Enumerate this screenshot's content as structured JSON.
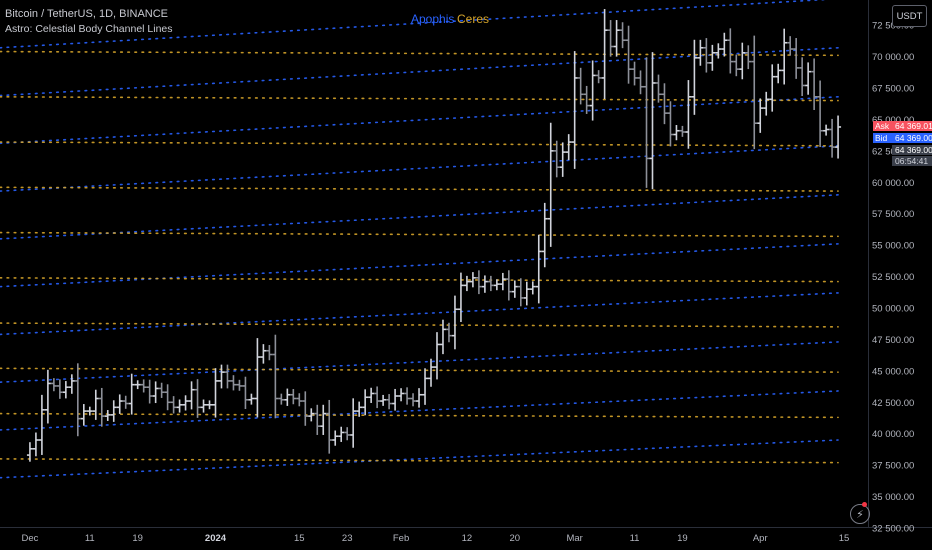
{
  "header": {
    "symbol_line": "Bitcoin / TetherUS, 1D, BINANCE",
    "indicator_line": "Astro: Celestial Body Channel Lines"
  },
  "legend": [
    {
      "name": "Apophis",
      "color": "#2962ff"
    },
    {
      "name": "Ceres",
      "color": "#d6a52b"
    }
  ],
  "currency_button": "USDT",
  "price_tags": {
    "ask_label": "Ask",
    "ask_value": "64 369.01",
    "bid_label": "Bid",
    "bid_value": "64 369.00",
    "last_value": "64 369.00",
    "countdown": "06:54:41"
  },
  "colors": {
    "background": "#000000",
    "bars": "#c7c9ce",
    "apophis": "#2962ff",
    "ceres": "#d6a52b",
    "ask": "#f7525f",
    "bid": "#2962ff"
  },
  "icons": [
    "lightning-icon"
  ],
  "chart_data": {
    "type": "ohlc",
    "title": "Bitcoin / TetherUS, 1D, BINANCE",
    "y_axis": {
      "range": [
        32500,
        74500
      ],
      "ticks": [
        "32 500.00",
        "35 000.00",
        "37 500.00",
        "40 000.00",
        "42 500.00",
        "45 000.00",
        "47 500.00",
        "50 000.00",
        "52 500.00",
        "55 000.00",
        "57 500.00",
        "60 000.00",
        "62 500.00",
        "65 000.00",
        "67 500.00",
        "70 000.00",
        "72 500.00"
      ]
    },
    "x_axis": {
      "range_days": [
        -5,
        140
      ],
      "labels": [
        {
          "day": 0,
          "text": "Dec"
        },
        {
          "day": 10,
          "text": "11"
        },
        {
          "day": 18,
          "text": "19"
        },
        {
          "day": 31,
          "text": "2024"
        },
        {
          "day": 45,
          "text": "15"
        },
        {
          "day": 53,
          "text": "23"
        },
        {
          "day": 62,
          "text": "Feb"
        },
        {
          "day": 73,
          "text": "12"
        },
        {
          "day": 81,
          "text": "20"
        },
        {
          "day": 91,
          "text": "Mar"
        },
        {
          "day": 101,
          "text": "11"
        },
        {
          "day": 109,
          "text": "19"
        },
        {
          "day": 122,
          "text": "Apr"
        },
        {
          "day": 136,
          "text": "15"
        }
      ]
    },
    "series": [
      {
        "name": "BTCUSDT",
        "type": "ohlc",
        "start_day": 0,
        "note": "daily bars",
        "close": [
          38800,
          39500,
          41900,
          44000,
          43800,
          43300,
          43700,
          44200,
          41200,
          41800,
          41800,
          42800,
          41400,
          41500,
          42100,
          42600,
          42400,
          43900,
          43900,
          43700,
          43000,
          43600,
          43300,
          42500,
          42100,
          42300,
          42600,
          43500,
          42100,
          42300,
          42300,
          44200,
          44900,
          44200,
          43900,
          43800,
          42700,
          42800,
          46100,
          46600,
          46300,
          42800,
          42700,
          43100,
          42800,
          42600,
          41400,
          41600,
          40600,
          41600,
          39500,
          39800,
          40100,
          39900,
          41800,
          42100,
          42900,
          43200,
          42600,
          42700,
          42400,
          43000,
          43200,
          42800,
          42600,
          43100,
          44400,
          45300,
          47100,
          48300,
          47800,
          49900,
          51800,
          52100,
          52400,
          51700,
          52100,
          51800,
          51900,
          52300,
          51300,
          51700,
          50800,
          51500,
          51700,
          54500,
          57100,
          62500,
          61200,
          62400,
          63200,
          68300,
          67000,
          66100,
          68500,
          68300,
          72100,
          70800,
          72100,
          71300,
          69000,
          68300,
          67600,
          61900,
          67900,
          67000,
          65500,
          63800,
          64100,
          64000,
          66800,
          69900,
          70700,
          69500,
          70300,
          70600,
          71300,
          69600,
          69000,
          70300,
          69600,
          64700,
          65900,
          66600,
          68400,
          68900,
          71100,
          70600,
          69100,
          67700,
          68800,
          66800,
          64100,
          64200,
          62800,
          64400
        ]
      },
      {
        "name": "Apophis",
        "type": "channel_lines",
        "color": "#2962ff",
        "levels_left": [
          36500,
          40300,
          44100,
          47900,
          51700,
          55500,
          59300,
          63100,
          66900,
          70700
        ],
        "levels_right": [
          39500,
          43400,
          47300,
          51200,
          55100,
          59000,
          62900,
          66800,
          70700,
          74600
        ]
      },
      {
        "name": "Ceres",
        "type": "channel_lines",
        "color": "#d6a52b",
        "levels_left": [
          38000,
          41600,
          45200,
          48800,
          52400,
          56000,
          59600,
          63200,
          66800,
          70400
        ],
        "levels_right": [
          37700,
          41300,
          44900,
          48500,
          52100,
          55700,
          59300,
          62900,
          66500,
          70100
        ]
      }
    ],
    "grid": false,
    "legend": "top-center"
  }
}
